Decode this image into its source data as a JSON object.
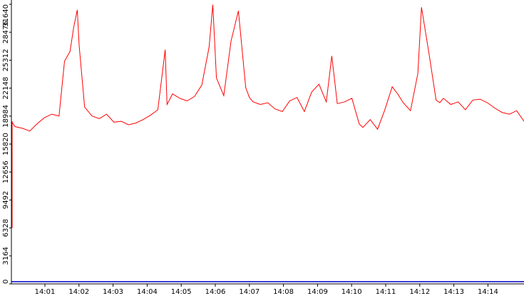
{
  "chart_data": {
    "type": "line",
    "title": "",
    "xlabel": "",
    "ylabel": "",
    "ylim": [
      0,
      31640
    ],
    "xlim_minutes": [
      0.0,
      14.0
    ],
    "y_ticks": [
      0,
      3164,
      6328,
      9492,
      12656,
      15820,
      18984,
      22148,
      25312,
      28476,
      31640
    ],
    "x_ticks": [
      "14:01",
      "14:02",
      "14:03",
      "14:04",
      "14:05",
      "14:06",
      "14:07",
      "14:08",
      "14:09",
      "14:10",
      "14:11",
      "14:12",
      "14:13",
      "14:14"
    ],
    "series": [
      {
        "color": "#ff0000",
        "x_minutes": [
          0.0,
          0.1,
          0.3,
          0.5,
          0.7,
          0.9,
          1.1,
          1.3,
          1.45,
          1.6,
          1.7,
          1.8,
          1.85,
          2.0,
          2.2,
          2.4,
          2.6,
          2.8,
          3.0,
          3.2,
          3.4,
          3.6,
          3.8,
          4.0,
          4.2,
          4.25,
          4.4,
          4.6,
          4.8,
          5.0,
          5.2,
          5.4,
          5.5,
          5.6,
          5.8,
          6.0,
          6.2,
          6.4,
          6.5,
          6.6,
          6.8,
          7.0,
          7.2,
          7.4,
          7.6,
          7.8,
          8.0,
          8.2,
          8.4,
          8.6,
          8.75,
          8.9,
          9.1,
          9.3,
          9.5,
          9.6,
          9.8,
          10.0,
          10.2,
          10.4,
          10.55,
          10.7,
          10.9,
          11.1,
          11.2,
          11.4,
          11.6,
          11.7,
          11.8,
          12.0,
          12.2,
          12.4,
          12.6,
          12.8,
          13.0,
          13.2,
          13.4,
          13.6,
          13.8,
          14.0
        ],
        "y": [
          18400,
          17800,
          17600,
          17300,
          18100,
          18800,
          19200,
          19000,
          25200,
          26300,
          29000,
          31000,
          27000,
          20000,
          19000,
          18700,
          19200,
          18300,
          18400,
          18000,
          18200,
          18600,
          19100,
          19700,
          26500,
          20300,
          21500,
          21000,
          20700,
          21200,
          22500,
          26800,
          31600,
          23300,
          21300,
          27500,
          30900,
          22200,
          21100,
          20600,
          20300,
          20500,
          19800,
          19500,
          20700,
          21100,
          19500,
          21700,
          22600,
          20600,
          25800,
          20400,
          20600,
          21000,
          18100,
          17700,
          18600,
          17500,
          19700,
          22300,
          21500,
          20500,
          19600,
          23800,
          31300,
          26200,
          20800,
          20500,
          21000,
          20300,
          20600,
          19700,
          20800,
          20900,
          20500,
          19900,
          19400,
          19200,
          19600,
          18400
        ]
      },
      {
        "color": "#0000cc",
        "x_minutes": [
          0.0,
          14.0
        ],
        "y": [
          250,
          250
        ]
      }
    ],
    "grid": false,
    "legend": "none"
  }
}
